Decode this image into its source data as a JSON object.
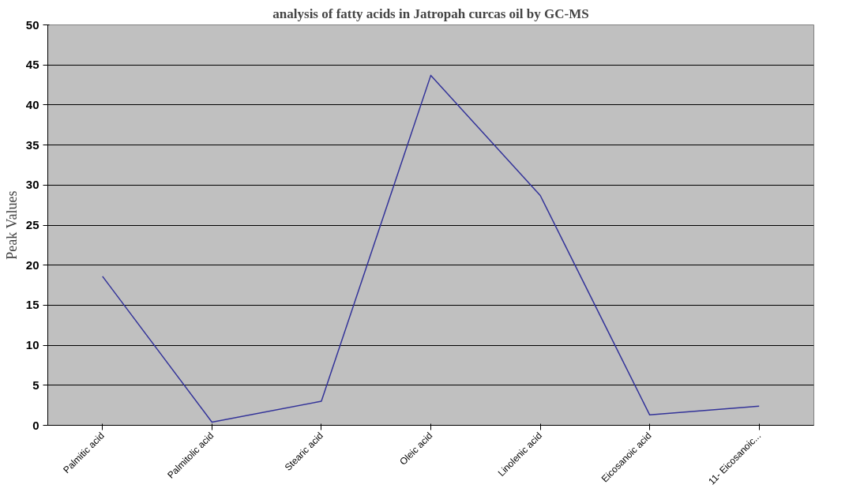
{
  "chart_data": {
    "type": "line",
    "title": "analysis of fatty acids in Jatropah curcas oil by GC-MS",
    "ylabel": "Peak Values",
    "categories": [
      "Palmitic acid",
      "Palmitolic acid",
      "Stearic acid",
      "Oleic acid",
      "Linolenic acid",
      "Eicosanoic acid",
      "11- Eicosanoic..."
    ],
    "series": [
      {
        "color": "#333399",
        "values": [
          18.6,
          0.4,
          3.0,
          43.7,
          28.7,
          1.3,
          2.4
        ]
      }
    ],
    "ylim": [
      0,
      50
    ],
    "yticks": [
      0,
      5,
      10,
      15,
      20,
      25,
      30,
      35,
      40,
      45,
      50
    ],
    "grid": "y",
    "marker": "none",
    "line_style": "solid"
  }
}
